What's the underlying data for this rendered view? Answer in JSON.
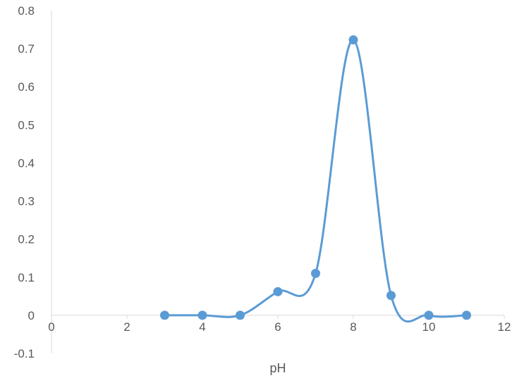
{
  "chart_data": {
    "type": "scatter",
    "line_style": "smooth",
    "title": "",
    "xlabel": "pH",
    "ylabel": "",
    "xlim": [
      0,
      12
    ],
    "ylim": [
      -0.1,
      0.8
    ],
    "x_ticks": [
      "0",
      "2",
      "4",
      "6",
      "8",
      "10",
      "12"
    ],
    "y_ticks": [
      "-0.1",
      "0",
      "0.1",
      "0.2",
      "0.3",
      "0.4",
      "0.5",
      "0.6",
      "0.7",
      "0.8"
    ],
    "grid": false,
    "legend": "none",
    "series": [
      {
        "color": "#5b9bd5",
        "points": [
          {
            "x": 3,
            "y": 0.0
          },
          {
            "x": 4,
            "y": 0.0
          },
          {
            "x": 5,
            "y": 0.0
          },
          {
            "x": 6,
            "y": 0.062
          },
          {
            "x": 7,
            "y": 0.11
          },
          {
            "x": 8,
            "y": 0.723
          },
          {
            "x": 9,
            "y": 0.052
          },
          {
            "x": 10,
            "y": 0.0
          },
          {
            "x": 11,
            "y": 0.0
          }
        ]
      }
    ],
    "axis_color": "#d9d9d9"
  }
}
